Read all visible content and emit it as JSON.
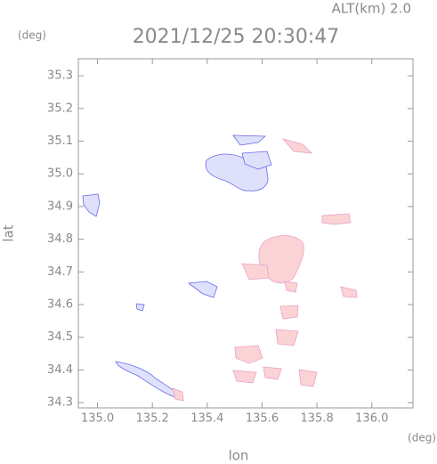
{
  "alt_label": "ALT(km) 2.0",
  "chart_data": {
    "type": "map",
    "title": "2021/12/25 20:30:47",
    "x_label": "lon",
    "y_label": "lat",
    "x_unit": "(deg)",
    "y_unit": "(deg)",
    "xlim": [
      134.93,
      136.15
    ],
    "ylim": [
      34.284,
      35.352
    ],
    "xticks": [
      {
        "value": 135,
        "label": "135.0"
      },
      135.2,
      135.4,
      135.6,
      135.8,
      {
        "value": 136,
        "label": "136.0"
      }
    ],
    "yticks": [
      34.3,
      34.4,
      34.5,
      34.6,
      34.7,
      34.8,
      34.9,
      {
        "value": 35,
        "label": "35.0"
      },
      35.1,
      35.2,
      35.3
    ]
  }
}
